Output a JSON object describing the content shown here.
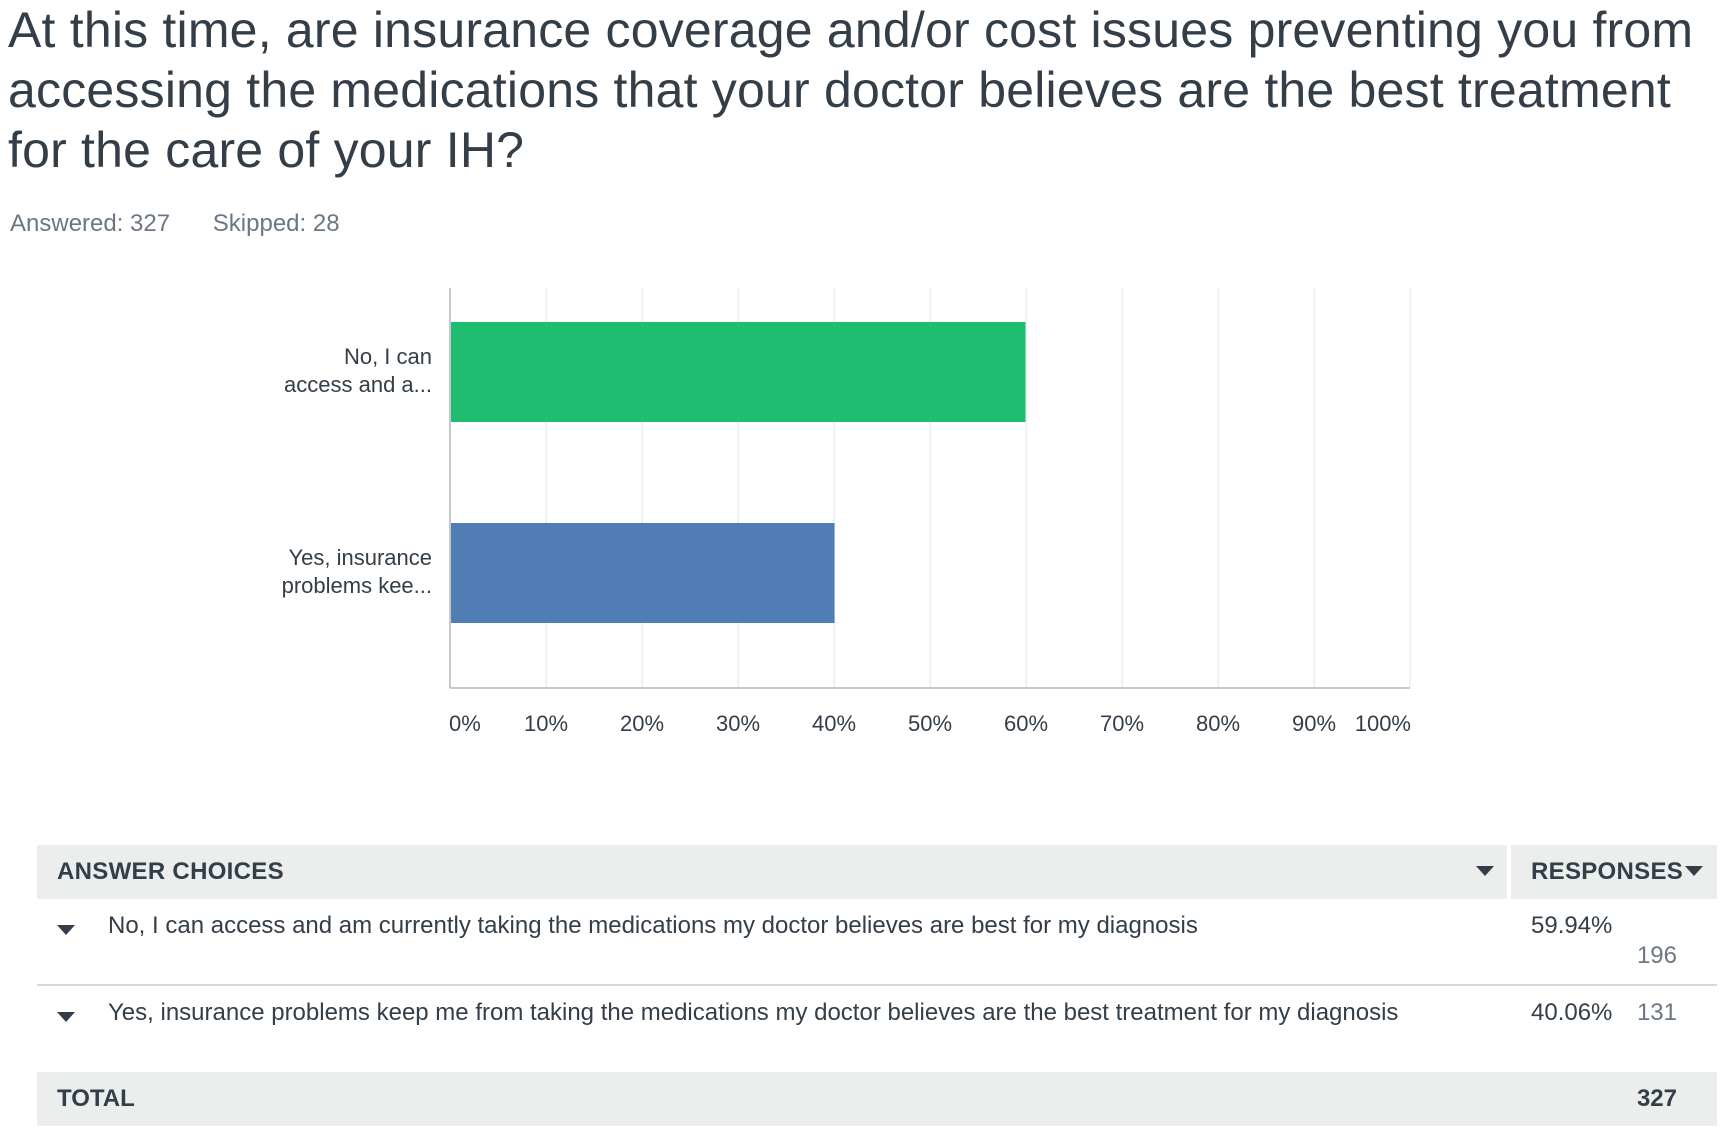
{
  "question": {
    "title": "At this time, are insurance coverage and/or cost issues preventing you from accessing the medications that your doctor believes are the best treatment for the care of your IH?",
    "answered": "Answered: 327",
    "skipped": "Skipped: 28"
  },
  "chart_data": {
    "type": "bar",
    "orientation": "horizontal",
    "categories": [
      [
        "No, I can",
        "access and a..."
      ],
      [
        "Yes, insurance",
        "problems kee..."
      ]
    ],
    "values": [
      59.94,
      40.06
    ],
    "xlim": [
      0,
      100
    ],
    "xticks": [
      "0%",
      "10%",
      "20%",
      "30%",
      "40%",
      "50%",
      "60%",
      "70%",
      "80%",
      "90%",
      "100%"
    ],
    "grid": true,
    "colors": [
      "#1fbd6f",
      "#517db5"
    ]
  },
  "table": {
    "header_choices": "ANSWER CHOICES",
    "header_responses": "RESPONSES",
    "rows": [
      {
        "label": "No, I can access and am currently taking the medications my doctor believes are best for my diagnosis",
        "percent": "59.94%",
        "count": "196"
      },
      {
        "label": "Yes, insurance problems keep me from taking the medications my doctor believes are the best treatment for my diagnosis",
        "percent": "40.06%",
        "count": "131"
      }
    ],
    "total_label": "TOTAL",
    "total_value": "327"
  }
}
